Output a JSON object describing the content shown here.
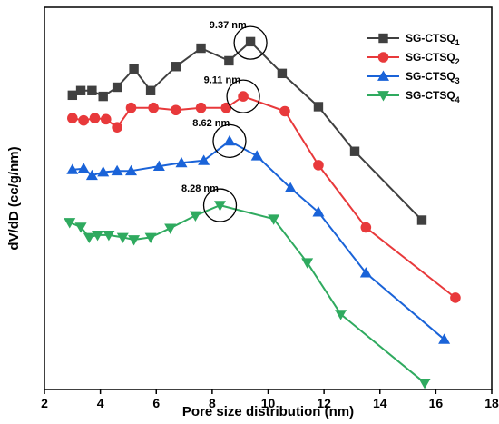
{
  "chart_data": {
    "type": "line",
    "xlabel": "Pore size distribution (nm)",
    "ylabel": "dV/dD (cc/g/nm)",
    "xlim": [
      2,
      18
    ],
    "ylim": [
      0,
      1
    ],
    "xticks": [
      "2",
      "4",
      "6",
      "8",
      "10",
      "12",
      "14",
      "16",
      "18"
    ],
    "yticks": [],
    "grid": false,
    "legend_position": "top-right",
    "series": [
      {
        "name": "SG-CTSQ",
        "subscript": "1",
        "color": "#404040",
        "marker": "square",
        "x": [
          3.0,
          3.3,
          3.7,
          4.1,
          4.6,
          5.2,
          5.8,
          6.7,
          7.6,
          8.6,
          9.37,
          10.5,
          11.8,
          13.1,
          15.5
        ],
        "y": [
          0.77,
          0.782,
          0.782,
          0.767,
          0.791,
          0.839,
          0.782,
          0.845,
          0.893,
          0.86,
          0.91,
          0.827,
          0.74,
          0.623,
          0.443
        ]
      },
      {
        "name": "SG-CTSQ",
        "subscript": "2",
        "color": "#e8393b",
        "marker": "circle",
        "x": [
          3.0,
          3.4,
          3.8,
          4.2,
          4.6,
          5.1,
          5.9,
          6.7,
          7.6,
          8.5,
          9.11,
          10.6,
          11.8,
          13.5,
          16.7
        ],
        "y": [
          0.71,
          0.704,
          0.71,
          0.707,
          0.686,
          0.737,
          0.737,
          0.731,
          0.737,
          0.737,
          0.767,
          0.728,
          0.587,
          0.424,
          0.24
        ]
      },
      {
        "name": "SG-CTSQ",
        "subscript": "3",
        "color": "#1a63d8",
        "marker": "triangle-up",
        "x": [
          3.0,
          3.4,
          3.7,
          4.1,
          4.6,
          5.1,
          6.1,
          6.9,
          7.7,
          8.62,
          9.6,
          10.8,
          11.8,
          13.5,
          16.3
        ],
        "y": [
          0.575,
          0.578,
          0.56,
          0.569,
          0.572,
          0.572,
          0.584,
          0.593,
          0.599,
          0.65,
          0.611,
          0.527,
          0.464,
          0.305,
          0.131
        ]
      },
      {
        "name": "SG-CTSQ",
        "subscript": "4",
        "color": "#2faa5f",
        "marker": "triangle-down",
        "x": [
          2.9,
          3.3,
          3.6,
          3.9,
          4.3,
          4.8,
          5.2,
          5.8,
          6.5,
          7.4,
          8.28,
          10.2,
          11.4,
          12.6,
          15.6
        ],
        "y": [
          0.437,
          0.425,
          0.398,
          0.404,
          0.404,
          0.398,
          0.392,
          0.398,
          0.422,
          0.455,
          0.482,
          0.446,
          0.332,
          0.197,
          0.017
        ]
      }
    ],
    "annotations": [
      {
        "text": "9.37 nm",
        "x": 7.9,
        "y": 0.945,
        "circle_x": 9.37,
        "circle_y": 0.907
      },
      {
        "text": "9.11 nm",
        "x": 7.7,
        "y": 0.802,
        "circle_x": 9.11,
        "circle_y": 0.767
      },
      {
        "text": "8.62 nm",
        "x": 7.3,
        "y": 0.689,
        "circle_x": 8.62,
        "circle_y": 0.65
      },
      {
        "text": "8.28 nm",
        "x": 6.9,
        "y": 0.518,
        "circle_x": 8.28,
        "circle_y": 0.482
      }
    ]
  }
}
